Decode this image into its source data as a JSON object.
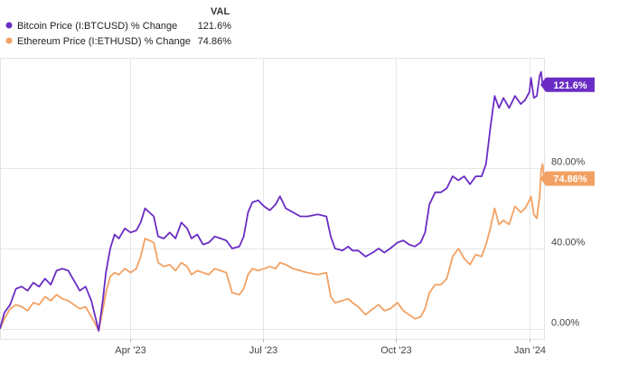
{
  "legend": {
    "value_header": "VAL",
    "items": [
      {
        "label": "Bitcoin Price (I:BTCUSD) % Change",
        "value": "121.6%",
        "color": "#6a2cc4"
      },
      {
        "label": "Ethereum Price (I:ETHUSD) % Change",
        "value": "74.86%",
        "color": "#f2a163"
      }
    ]
  },
  "chart_data": {
    "type": "line",
    "x_axis": {
      "type": "date",
      "range": [
        "2023-01-01",
        "2024-01-11"
      ],
      "ticks": [
        {
          "date": "2023-04-01",
          "label": "Apr '23"
        },
        {
          "date": "2023-07-01",
          "label": "Jul '23"
        },
        {
          "date": "2023-10-01",
          "label": "Oct '23"
        },
        {
          "date": "2024-01-01",
          "label": "Jan '24"
        }
      ]
    },
    "y_axis": {
      "range": [
        -5,
        135
      ],
      "ticks": [
        {
          "value": 0,
          "label": "0.00%"
        },
        {
          "value": 40,
          "label": "40.00%"
        },
        {
          "value": 80,
          "label": "80.00%"
        }
      ],
      "position": "right"
    },
    "grid": true,
    "series": [
      {
        "name": "Bitcoin Price (I:BTCUSD) % Change",
        "color": "#6a2cc4",
        "end_label": "121.6%",
        "points": [
          [
            "2023-01-01",
            0
          ],
          [
            "2023-01-04",
            8
          ],
          [
            "2023-01-08",
            12
          ],
          [
            "2023-01-12",
            20
          ],
          [
            "2023-01-16",
            21
          ],
          [
            "2023-01-20",
            19
          ],
          [
            "2023-01-24",
            23
          ],
          [
            "2023-01-28",
            21
          ],
          [
            "2023-02-01",
            25
          ],
          [
            "2023-02-05",
            22
          ],
          [
            "2023-02-09",
            29
          ],
          [
            "2023-02-13",
            30
          ],
          [
            "2023-02-17",
            29
          ],
          [
            "2023-02-21",
            24
          ],
          [
            "2023-02-25",
            19
          ],
          [
            "2023-03-01",
            21
          ],
          [
            "2023-03-05",
            14
          ],
          [
            "2023-03-08",
            5
          ],
          [
            "2023-03-10",
            -1
          ],
          [
            "2023-03-13",
            15
          ],
          [
            "2023-03-15",
            28
          ],
          [
            "2023-03-18",
            40
          ],
          [
            "2023-03-21",
            47
          ],
          [
            "2023-03-24",
            45
          ],
          [
            "2023-03-28",
            50
          ],
          [
            "2023-04-01",
            48
          ],
          [
            "2023-04-05",
            49
          ],
          [
            "2023-04-08",
            53
          ],
          [
            "2023-04-11",
            60
          ],
          [
            "2023-04-14",
            58
          ],
          [
            "2023-04-17",
            56
          ],
          [
            "2023-04-20",
            46
          ],
          [
            "2023-04-24",
            45
          ],
          [
            "2023-04-28",
            48
          ],
          [
            "2023-05-02",
            45
          ],
          [
            "2023-05-06",
            53
          ],
          [
            "2023-05-10",
            50
          ],
          [
            "2023-05-13",
            45
          ],
          [
            "2023-05-17",
            47
          ],
          [
            "2023-05-21",
            42
          ],
          [
            "2023-05-25",
            43
          ],
          [
            "2023-05-29",
            46
          ],
          [
            "2023-06-02",
            45
          ],
          [
            "2023-06-06",
            44
          ],
          [
            "2023-06-10",
            40
          ],
          [
            "2023-06-15",
            41
          ],
          [
            "2023-06-18",
            46
          ],
          [
            "2023-06-21",
            58
          ],
          [
            "2023-06-24",
            63
          ],
          [
            "2023-06-28",
            64
          ],
          [
            "2023-07-02",
            61
          ],
          [
            "2023-07-06",
            59
          ],
          [
            "2023-07-10",
            62
          ],
          [
            "2023-07-13",
            66
          ],
          [
            "2023-07-17",
            60
          ],
          [
            "2023-07-22",
            58
          ],
          [
            "2023-07-27",
            56
          ],
          [
            "2023-08-01",
            56
          ],
          [
            "2023-08-08",
            57
          ],
          [
            "2023-08-14",
            56
          ],
          [
            "2023-08-17",
            46
          ],
          [
            "2023-08-20",
            40
          ],
          [
            "2023-08-25",
            39
          ],
          [
            "2023-08-29",
            41
          ],
          [
            "2023-09-01",
            39
          ],
          [
            "2023-09-05",
            39
          ],
          [
            "2023-09-10",
            36
          ],
          [
            "2023-09-15",
            38
          ],
          [
            "2023-09-19",
            40
          ],
          [
            "2023-09-23",
            38
          ],
          [
            "2023-09-27",
            40
          ],
          [
            "2023-10-02",
            43
          ],
          [
            "2023-10-06",
            44
          ],
          [
            "2023-10-10",
            42
          ],
          [
            "2023-10-14",
            41
          ],
          [
            "2023-10-18",
            43
          ],
          [
            "2023-10-21",
            48
          ],
          [
            "2023-10-24",
            62
          ],
          [
            "2023-10-28",
            68
          ],
          [
            "2023-11-01",
            68
          ],
          [
            "2023-11-05",
            70
          ],
          [
            "2023-11-09",
            76
          ],
          [
            "2023-11-13",
            74
          ],
          [
            "2023-11-17",
            76
          ],
          [
            "2023-11-21",
            72
          ],
          [
            "2023-11-25",
            76
          ],
          [
            "2023-11-29",
            76
          ],
          [
            "2023-12-02",
            82
          ],
          [
            "2023-12-05",
            100
          ],
          [
            "2023-12-08",
            116
          ],
          [
            "2023-12-11",
            110
          ],
          [
            "2023-12-14",
            115
          ],
          [
            "2023-12-18",
            110
          ],
          [
            "2023-12-22",
            116
          ],
          [
            "2023-12-26",
            112
          ],
          [
            "2023-12-29",
            114
          ],
          [
            "2024-01-01",
            118
          ],
          [
            "2024-01-02",
            125
          ],
          [
            "2024-01-04",
            115
          ],
          [
            "2024-01-06",
            116
          ],
          [
            "2024-01-08",
            126
          ],
          [
            "2024-01-09",
            128
          ],
          [
            "2024-01-10",
            122
          ],
          [
            "2024-01-11",
            121.6
          ]
        ]
      },
      {
        "name": "Ethereum Price (I:ETHUSD) % Change",
        "color": "#f2a163",
        "end_label": "74.86%",
        "points": [
          [
            "2023-01-01",
            0
          ],
          [
            "2023-01-04",
            5
          ],
          [
            "2023-01-08",
            10
          ],
          [
            "2023-01-12",
            12
          ],
          [
            "2023-01-16",
            11
          ],
          [
            "2023-01-20",
            9
          ],
          [
            "2023-01-24",
            13
          ],
          [
            "2023-01-28",
            12
          ],
          [
            "2023-02-01",
            16
          ],
          [
            "2023-02-05",
            14
          ],
          [
            "2023-02-09",
            17
          ],
          [
            "2023-02-13",
            15
          ],
          [
            "2023-02-17",
            14
          ],
          [
            "2023-02-21",
            12
          ],
          [
            "2023-02-25",
            10
          ],
          [
            "2023-03-01",
            11
          ],
          [
            "2023-03-05",
            6
          ],
          [
            "2023-03-08",
            2
          ],
          [
            "2023-03-10",
            -1
          ],
          [
            "2023-03-13",
            10
          ],
          [
            "2023-03-15",
            18
          ],
          [
            "2023-03-18",
            26
          ],
          [
            "2023-03-21",
            28
          ],
          [
            "2023-03-24",
            27
          ],
          [
            "2023-03-28",
            30
          ],
          [
            "2023-04-01",
            28
          ],
          [
            "2023-04-05",
            30
          ],
          [
            "2023-04-08",
            36
          ],
          [
            "2023-04-11",
            45
          ],
          [
            "2023-04-14",
            44
          ],
          [
            "2023-04-17",
            43
          ],
          [
            "2023-04-20",
            33
          ],
          [
            "2023-04-24",
            31
          ],
          [
            "2023-04-28",
            32
          ],
          [
            "2023-05-02",
            29
          ],
          [
            "2023-05-06",
            33
          ],
          [
            "2023-05-10",
            31
          ],
          [
            "2023-05-13",
            27
          ],
          [
            "2023-05-17",
            29
          ],
          [
            "2023-05-21",
            28
          ],
          [
            "2023-05-25",
            27
          ],
          [
            "2023-05-29",
            30
          ],
          [
            "2023-06-02",
            29
          ],
          [
            "2023-06-06",
            28
          ],
          [
            "2023-06-10",
            18
          ],
          [
            "2023-06-15",
            17
          ],
          [
            "2023-06-18",
            20
          ],
          [
            "2023-06-21",
            27
          ],
          [
            "2023-06-24",
            30
          ],
          [
            "2023-06-28",
            29
          ],
          [
            "2023-07-02",
            30
          ],
          [
            "2023-07-06",
            31
          ],
          [
            "2023-07-10",
            30
          ],
          [
            "2023-07-13",
            33
          ],
          [
            "2023-07-17",
            32
          ],
          [
            "2023-07-22",
            30
          ],
          [
            "2023-07-27",
            29
          ],
          [
            "2023-08-01",
            28
          ],
          [
            "2023-08-08",
            27
          ],
          [
            "2023-08-14",
            28
          ],
          [
            "2023-08-17",
            16
          ],
          [
            "2023-08-20",
            13
          ],
          [
            "2023-08-25",
            14
          ],
          [
            "2023-08-29",
            15
          ],
          [
            "2023-09-01",
            13
          ],
          [
            "2023-09-05",
            11
          ],
          [
            "2023-09-10",
            7
          ],
          [
            "2023-09-15",
            10
          ],
          [
            "2023-09-19",
            12
          ],
          [
            "2023-09-23",
            9
          ],
          [
            "2023-09-27",
            10
          ],
          [
            "2023-10-02",
            13
          ],
          [
            "2023-10-06",
            9
          ],
          [
            "2023-10-10",
            7
          ],
          [
            "2023-10-14",
            5
          ],
          [
            "2023-10-18",
            6
          ],
          [
            "2023-10-21",
            10
          ],
          [
            "2023-10-24",
            18
          ],
          [
            "2023-10-28",
            22
          ],
          [
            "2023-11-01",
            22
          ],
          [
            "2023-11-05",
            25
          ],
          [
            "2023-11-09",
            36
          ],
          [
            "2023-11-13",
            40
          ],
          [
            "2023-11-17",
            35
          ],
          [
            "2023-11-21",
            32
          ],
          [
            "2023-11-25",
            37
          ],
          [
            "2023-11-29",
            36
          ],
          [
            "2023-12-02",
            42
          ],
          [
            "2023-12-05",
            50
          ],
          [
            "2023-12-08",
            60
          ],
          [
            "2023-12-11",
            52
          ],
          [
            "2023-12-14",
            54
          ],
          [
            "2023-12-18",
            52
          ],
          [
            "2023-12-22",
            61
          ],
          [
            "2023-12-26",
            58
          ],
          [
            "2023-12-29",
            60
          ],
          [
            "2024-01-01",
            64
          ],
          [
            "2024-01-02",
            66
          ],
          [
            "2024-01-04",
            57
          ],
          [
            "2024-01-06",
            55
          ],
          [
            "2024-01-08",
            66
          ],
          [
            "2024-01-09",
            79
          ],
          [
            "2024-01-10",
            82
          ],
          [
            "2024-01-11",
            74.86
          ]
        ]
      }
    ]
  }
}
